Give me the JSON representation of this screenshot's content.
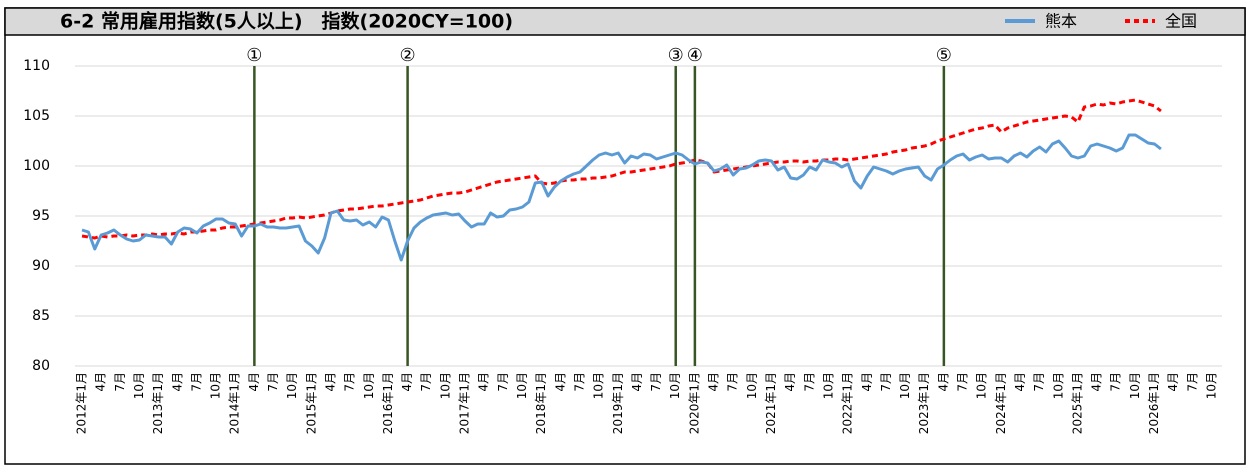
{
  "chart_data": {
    "type": "line",
    "title": "6-2 常用雇用指数(5人以上)　指数(2020CY=100)",
    "categories": [
      "2012年1月",
      null,
      null,
      "4月",
      null,
      null,
      "7月",
      null,
      null,
      "10月",
      null,
      null,
      "2013年1月",
      null,
      null,
      "4月",
      null,
      null,
      "7月",
      null,
      null,
      "10月",
      null,
      null,
      "2014年1月",
      null,
      null,
      "4月",
      null,
      null,
      "7月",
      null,
      null,
      "10月",
      null,
      null,
      "2015年1月",
      null,
      null,
      "4月",
      null,
      null,
      "7月",
      null,
      null,
      "10月",
      null,
      null,
      "2016年1月",
      null,
      null,
      "4月",
      null,
      null,
      "7月",
      null,
      null,
      "10月",
      null,
      null,
      "2017年1月",
      null,
      null,
      "4月",
      null,
      null,
      "7月",
      null,
      null,
      "10月",
      null,
      null,
      "2018年1月",
      null,
      null,
      "4月",
      null,
      null,
      "7月",
      null,
      null,
      "10月",
      null,
      null,
      "2019年1月",
      null,
      null,
      "4月",
      null,
      null,
      "7月",
      null,
      null,
      "10月",
      null,
      null,
      "2020年1月",
      null,
      null,
      "4月",
      null,
      null,
      "7月",
      null,
      null,
      "10月",
      null,
      null,
      "2021年1月",
      null,
      null,
      "4月",
      null,
      null,
      "7月",
      null,
      null,
      "10月",
      null,
      null,
      "2022年1月",
      null,
      null,
      "4月",
      null,
      null,
      "7月",
      null,
      null,
      "10月",
      null,
      null,
      "2023年1月",
      null,
      null,
      "4月",
      null,
      null,
      "7月",
      null,
      null,
      "10月",
      null,
      null,
      "2024年1月",
      null,
      null,
      "4月",
      null,
      null,
      "7月",
      null,
      null,
      "10月",
      null,
      null,
      "2025年1月",
      null,
      null,
      "4月",
      null,
      null,
      "7月",
      null,
      null,
      "10月",
      null,
      null,
      "2026年1月",
      null,
      null,
      "4月",
      null,
      null,
      "7月",
      null,
      null,
      "10月"
    ],
    "series": [
      {
        "name": "熊本",
        "color": "#5b9bd5",
        "dash": false,
        "values": [
          93.6,
          93.4,
          91.7,
          93.1,
          93.3,
          93.6,
          93.1,
          92.7,
          92.5,
          92.6,
          93.1,
          93.0,
          92.9,
          92.9,
          92.2,
          93.4,
          93.8,
          93.7,
          93.3,
          94.0,
          94.3,
          94.7,
          94.7,
          94.3,
          94.2,
          93.0,
          94.0,
          94.0,
          94.2,
          93.9,
          93.9,
          93.8,
          93.8,
          93.9,
          94.0,
          92.5,
          92.0,
          91.3,
          92.8,
          95.3,
          95.5,
          94.6,
          94.5,
          94.6,
          94.1,
          94.4,
          93.9,
          94.9,
          94.6,
          92.5,
          90.6,
          92.5,
          93.8,
          94.4,
          94.8,
          95.1,
          95.2,
          95.3,
          95.1,
          95.2,
          94.5,
          93.9,
          94.2,
          94.2,
          95.3,
          94.9,
          95.0,
          95.6,
          95.7,
          95.9,
          96.4,
          98.3,
          98.4,
          97.0,
          97.9,
          98.5,
          98.9,
          99.2,
          99.4,
          100.0,
          100.6,
          101.1,
          101.3,
          101.1,
          101.3,
          100.3,
          101.0,
          100.8,
          101.2,
          101.1,
          100.7,
          100.9,
          101.1,
          101.3,
          101.1,
          100.6,
          100.2,
          100.4,
          100.3,
          99.5,
          99.7,
          100.1,
          99.1,
          99.7,
          99.8,
          100.1,
          100.5,
          100.6,
          100.5,
          99.6,
          99.9,
          98.8,
          98.7,
          99.1,
          99.9,
          99.6,
          100.6,
          100.4,
          100.3,
          99.9,
          100.2,
          98.5,
          97.8,
          99.0,
          99.9,
          99.7,
          99.5,
          99.2,
          99.5,
          99.7,
          99.8,
          99.9,
          99.0,
          98.6,
          99.7,
          100.1,
          100.6,
          101.0,
          101.2,
          100.6,
          100.9,
          101.1,
          100.7,
          100.8,
          100.8,
          100.4,
          101.0,
          101.3,
          100.9,
          101.5,
          101.9,
          101.4,
          102.2,
          102.5,
          101.8,
          101.0,
          100.8,
          101.0,
          102.0,
          102.2,
          102.0,
          101.8,
          101.5,
          101.8,
          103.1,
          103.1,
          102.7,
          102.3,
          102.2,
          101.7,
          null,
          null,
          null,
          null,
          null,
          null,
          null,
          null
        ]
      },
      {
        "name": "全国",
        "color": "#ff0000",
        "dash": true,
        "values": [
          93.0,
          92.9,
          92.8,
          93.0,
          92.9,
          93.0,
          93.0,
          93.1,
          93.0,
          93.1,
          93.1,
          93.2,
          93.1,
          93.2,
          93.2,
          93.3,
          93.2,
          93.4,
          93.4,
          93.5,
          93.6,
          93.6,
          93.8,
          93.9,
          93.9,
          94.0,
          94.1,
          94.2,
          94.3,
          94.4,
          94.5,
          94.6,
          94.8,
          94.8,
          94.9,
          94.8,
          94.9,
          95.0,
          95.1,
          95.3,
          95.5,
          95.6,
          95.7,
          95.7,
          95.8,
          95.9,
          96.0,
          96.0,
          96.1,
          96.2,
          96.3,
          96.4,
          96.5,
          96.6,
          96.8,
          97.0,
          97.1,
          97.2,
          97.3,
          97.3,
          97.4,
          97.6,
          97.8,
          98.0,
          98.2,
          98.4,
          98.5,
          98.6,
          98.7,
          98.8,
          98.9,
          99.0,
          98.3,
          98.2,
          98.3,
          98.5,
          98.6,
          98.6,
          98.7,
          98.7,
          98.8,
          98.8,
          98.9,
          99.0,
          99.2,
          99.4,
          99.4,
          99.5,
          99.6,
          99.7,
          99.8,
          99.9,
          100.0,
          100.2,
          100.3,
          100.4,
          100.6,
          100.5,
          100.3,
          99.4,
          99.5,
          99.6,
          99.7,
          99.8,
          99.9,
          100.0,
          100.1,
          100.2,
          100.3,
          100.4,
          100.4,
          100.5,
          100.5,
          100.4,
          100.5,
          100.5,
          100.6,
          100.6,
          100.7,
          100.7,
          100.6,
          100.7,
          100.8,
          100.9,
          101.0,
          101.1,
          101.2,
          101.4,
          101.5,
          101.6,
          101.8,
          101.9,
          102.0,
          102.2,
          102.5,
          102.7,
          102.9,
          103.1,
          103.3,
          103.5,
          103.7,
          103.8,
          104.0,
          104.1,
          103.4,
          103.8,
          104.0,
          104.2,
          104.4,
          104.5,
          104.6,
          104.7,
          104.8,
          104.9,
          105.0,
          104.9,
          104.4,
          105.9,
          106.0,
          106.2,
          106.1,
          106.3,
          106.2,
          106.4,
          106.5,
          106.6,
          106.4,
          106.2,
          106.0,
          105.5,
          null,
          null,
          null,
          null,
          null,
          null,
          null,
          null
        ]
      }
    ],
    "ylim": [
      80,
      110
    ],
    "yticks": [
      80,
      85,
      90,
      95,
      100,
      105,
      110
    ],
    "grid": true,
    "events": [
      {
        "label": "①",
        "category": 27
      },
      {
        "label": "②",
        "category": 51
      },
      {
        "label": "③",
        "category": 93
      },
      {
        "label": "④",
        "category": 96
      },
      {
        "label": "⑤",
        "category": 135
      }
    ],
    "legend": "top-right"
  }
}
